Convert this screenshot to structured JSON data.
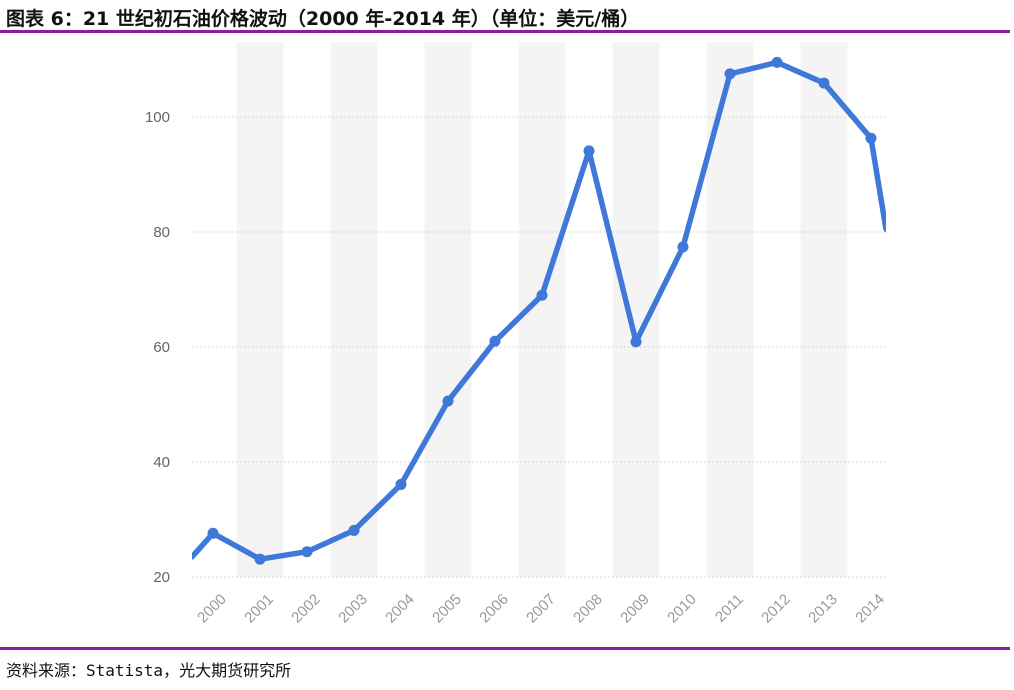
{
  "header": {
    "title": "图表 6：21 世纪初石油价格波动（2000 年-2014 年）（单位：美元/桶）"
  },
  "footer": {
    "source": "资料来源：Statista，光大期货研究所"
  },
  "colors": {
    "line": "#3f78d8",
    "rule": "#8a1ea0",
    "band": "#f4f4f4",
    "grid": "#cccccc"
  },
  "chart_data": {
    "type": "line",
    "title": "图表 6：21 世纪初石油价格波动（2000 年-2014 年）（单位：美元/桶）",
    "xlabel": "",
    "ylabel": "",
    "x": [
      "2000",
      "2001",
      "2002",
      "2003",
      "2004",
      "2005",
      "2006",
      "2007",
      "2008",
      "2009",
      "2010",
      "2011",
      "2012",
      "2013",
      "2014"
    ],
    "ylim": [
      20,
      111
    ],
    "yticks": [
      20,
      40,
      60,
      80,
      100
    ],
    "grid": true,
    "legend": "none",
    "series": [
      {
        "values": [
          27.6,
          23.1,
          24.4,
          28.1,
          36.1,
          50.6,
          61.0,
          69.0,
          94.1,
          60.9,
          77.4,
          107.5,
          109.5,
          105.9,
          96.3
        ]
      }
    ]
  }
}
